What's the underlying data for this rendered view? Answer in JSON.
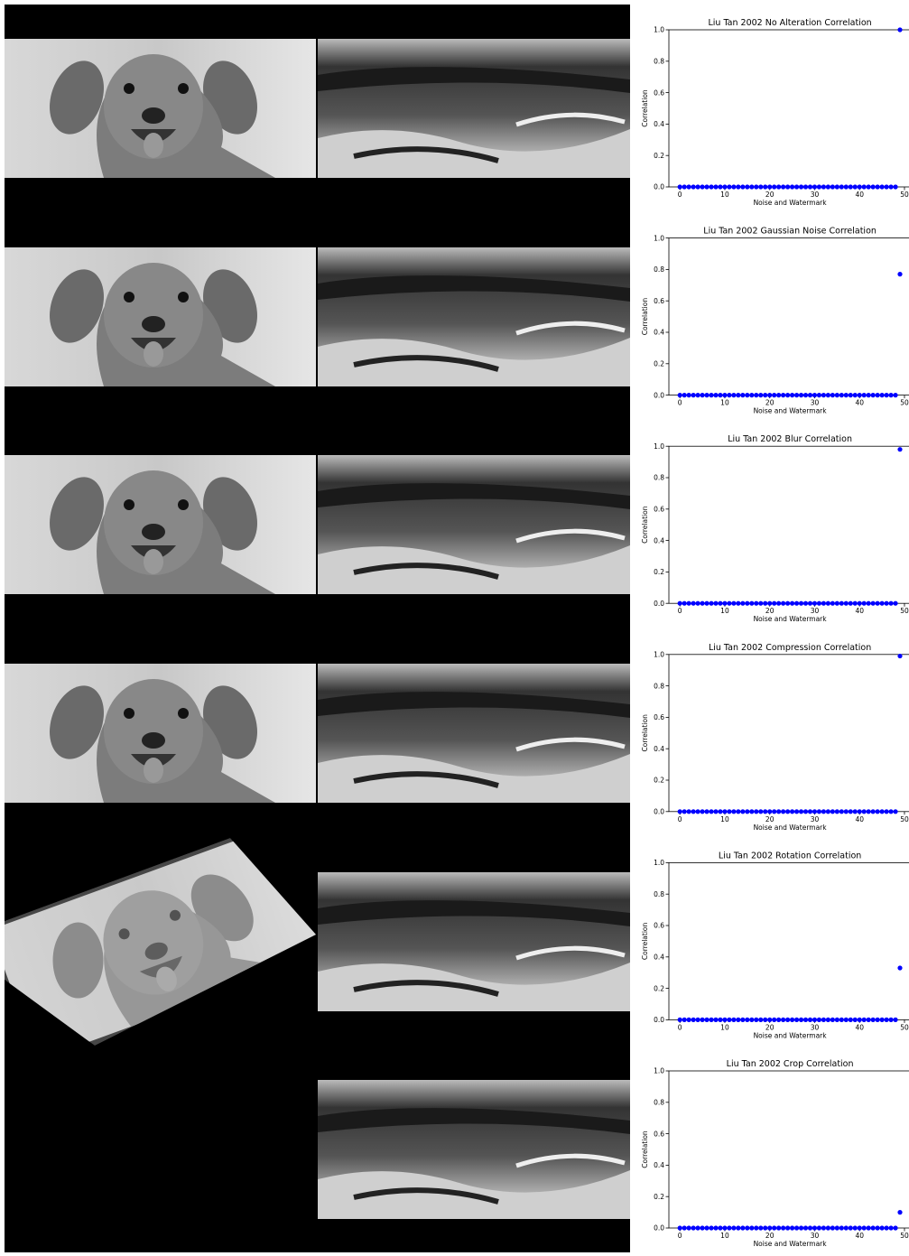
{
  "chart_data": [
    {
      "type": "scatter",
      "title": "Liu Tan 2002 No Alteration Correlation",
      "xlabel": "Noise and Watermark",
      "ylabel": "Correlation",
      "x": [
        0,
        1,
        2,
        3,
        4,
        5,
        6,
        7,
        8,
        9,
        10,
        11,
        12,
        13,
        14,
        15,
        16,
        17,
        18,
        19,
        20,
        21,
        22,
        23,
        24,
        25,
        26,
        27,
        28,
        29,
        30,
        31,
        32,
        33,
        34,
        35,
        36,
        37,
        38,
        39,
        40,
        41,
        42,
        43,
        44,
        45,
        46,
        47,
        48,
        49
      ],
      "values": [
        0,
        0,
        0,
        0,
        0,
        0,
        0,
        0,
        0,
        0,
        0,
        0,
        0,
        0,
        0,
        0,
        0,
        0,
        0,
        0,
        0,
        0,
        0,
        0,
        0,
        0,
        0,
        0,
        0,
        0,
        0,
        0,
        0,
        0,
        0,
        0,
        0,
        0,
        0,
        0,
        0,
        0,
        0,
        0,
        0,
        0,
        0,
        0,
        0,
        1.0
      ],
      "color": "#0000ff",
      "xlim": [
        -2.45,
        51.45
      ],
      "ylim": [
        0,
        1
      ],
      "xticks": [
        0,
        10,
        20,
        30,
        40,
        50
      ],
      "yticks": [
        {
          "value": 0,
          "label": "0.0"
        },
        {
          "value": 0.2,
          "label": "0.2"
        },
        {
          "value": 0.4,
          "label": "0.4"
        },
        {
          "value": 0.6,
          "label": "0.6"
        },
        {
          "value": 0.8,
          "label": "0.8"
        },
        {
          "value": 1,
          "label": "1.0"
        }
      ]
    },
    {
      "type": "scatter",
      "title": "Liu Tan 2002 Gaussian Noise Correlation",
      "xlabel": "Noise and Watermark",
      "ylabel": "Correlation",
      "x": [
        0,
        1,
        2,
        3,
        4,
        5,
        6,
        7,
        8,
        9,
        10,
        11,
        12,
        13,
        14,
        15,
        16,
        17,
        18,
        19,
        20,
        21,
        22,
        23,
        24,
        25,
        26,
        27,
        28,
        29,
        30,
        31,
        32,
        33,
        34,
        35,
        36,
        37,
        38,
        39,
        40,
        41,
        42,
        43,
        44,
        45,
        46,
        47,
        48,
        49
      ],
      "values": [
        0,
        0,
        0,
        0,
        0,
        0,
        0,
        0,
        0,
        0,
        0,
        0,
        0,
        0,
        0,
        0,
        0,
        0,
        0,
        0,
        0,
        0,
        0,
        0,
        0,
        0,
        0,
        0,
        0,
        0,
        0,
        0,
        0,
        0,
        0,
        0,
        0,
        0,
        0,
        0,
        0,
        0,
        0,
        0,
        0,
        0,
        0,
        0,
        0,
        0.77
      ],
      "color": "#0000ff",
      "xlim": [
        -2.45,
        51.45
      ],
      "ylim": [
        0,
        1
      ],
      "xticks": [
        0,
        10,
        20,
        30,
        40,
        50
      ],
      "yticks": [
        {
          "value": 0,
          "label": "0.0"
        },
        {
          "value": 0.2,
          "label": "0.2"
        },
        {
          "value": 0.4,
          "label": "0.4"
        },
        {
          "value": 0.6,
          "label": "0.6"
        },
        {
          "value": 0.8,
          "label": "0.8"
        },
        {
          "value": 1,
          "label": "1.0"
        }
      ]
    },
    {
      "type": "scatter",
      "title": "Liu Tan 2002 Blur Correlation",
      "xlabel": "Noise and Watermark",
      "ylabel": "Correlation",
      "x": [
        0,
        1,
        2,
        3,
        4,
        5,
        6,
        7,
        8,
        9,
        10,
        11,
        12,
        13,
        14,
        15,
        16,
        17,
        18,
        19,
        20,
        21,
        22,
        23,
        24,
        25,
        26,
        27,
        28,
        29,
        30,
        31,
        32,
        33,
        34,
        35,
        36,
        37,
        38,
        39,
        40,
        41,
        42,
        43,
        44,
        45,
        46,
        47,
        48,
        49
      ],
      "values": [
        0,
        0,
        0,
        0,
        0,
        0,
        0,
        0,
        0,
        0,
        0,
        0,
        0,
        0,
        0,
        0,
        0,
        0,
        0,
        0,
        0,
        0,
        0,
        0,
        0,
        0,
        0,
        0,
        0,
        0,
        0,
        0,
        0,
        0,
        0,
        0,
        0,
        0,
        0,
        0,
        0,
        0,
        0,
        0,
        0,
        0,
        0,
        0,
        0,
        0.98
      ],
      "color": "#0000ff",
      "xlim": [
        -2.45,
        51.45
      ],
      "ylim": [
        0,
        1
      ],
      "xticks": [
        0,
        10,
        20,
        30,
        40,
        50
      ],
      "yticks": [
        {
          "value": 0,
          "label": "0.0"
        },
        {
          "value": 0.2,
          "label": "0.2"
        },
        {
          "value": 0.4,
          "label": "0.4"
        },
        {
          "value": 0.6,
          "label": "0.6"
        },
        {
          "value": 0.8,
          "label": "0.8"
        },
        {
          "value": 1,
          "label": "1.0"
        }
      ]
    },
    {
      "type": "scatter",
      "title": "Liu Tan 2002 Compression Correlation",
      "xlabel": "Noise and Watermark",
      "ylabel": "Correlation",
      "x": [
        0,
        1,
        2,
        3,
        4,
        5,
        6,
        7,
        8,
        9,
        10,
        11,
        12,
        13,
        14,
        15,
        16,
        17,
        18,
        19,
        20,
        21,
        22,
        23,
        24,
        25,
        26,
        27,
        28,
        29,
        30,
        31,
        32,
        33,
        34,
        35,
        36,
        37,
        38,
        39,
        40,
        41,
        42,
        43,
        44,
        45,
        46,
        47,
        48,
        49
      ],
      "values": [
        0,
        0,
        0,
        0,
        0,
        0,
        0,
        0,
        0,
        0,
        0,
        0,
        0,
        0,
        0,
        0,
        0,
        0,
        0,
        0,
        0,
        0,
        0,
        0,
        0,
        0,
        0,
        0,
        0,
        0,
        0,
        0,
        0,
        0,
        0,
        0,
        0,
        0,
        0,
        0,
        0,
        0,
        0,
        0,
        0,
        0,
        0,
        0,
        0,
        0.99
      ],
      "color": "#0000ff",
      "xlim": [
        -2.45,
        51.45
      ],
      "ylim": [
        0,
        1
      ],
      "xticks": [
        0,
        10,
        20,
        30,
        40,
        50
      ],
      "yticks": [
        {
          "value": 0,
          "label": "0.0"
        },
        {
          "value": 0.2,
          "label": "0.2"
        },
        {
          "value": 0.4,
          "label": "0.4"
        },
        {
          "value": 0.6,
          "label": "0.6"
        },
        {
          "value": 0.8,
          "label": "0.8"
        },
        {
          "value": 1,
          "label": "1.0"
        }
      ]
    },
    {
      "type": "scatter",
      "title": "Liu Tan 2002 Rotation Correlation",
      "xlabel": "Noise and Watermark",
      "ylabel": "Correlation",
      "x": [
        0,
        1,
        2,
        3,
        4,
        5,
        6,
        7,
        8,
        9,
        10,
        11,
        12,
        13,
        14,
        15,
        16,
        17,
        18,
        19,
        20,
        21,
        22,
        23,
        24,
        25,
        26,
        27,
        28,
        29,
        30,
        31,
        32,
        33,
        34,
        35,
        36,
        37,
        38,
        39,
        40,
        41,
        42,
        43,
        44,
        45,
        46,
        47,
        48,
        49
      ],
      "values": [
        0,
        0,
        0,
        0,
        0,
        0,
        0,
        0,
        0,
        0,
        0,
        0,
        0,
        0,
        0,
        0,
        0,
        0,
        0,
        0,
        0,
        0,
        0,
        0,
        0,
        0,
        0,
        0,
        0,
        0,
        0,
        0,
        0,
        0,
        0,
        0,
        0,
        0,
        0,
        0,
        0,
        0,
        0,
        0,
        0,
        0,
        0,
        0,
        0,
        0.33
      ],
      "color": "#0000ff",
      "xlim": [
        -2.45,
        51.45
      ],
      "ylim": [
        0,
        1
      ],
      "xticks": [
        0,
        10,
        20,
        30,
        40,
        50
      ],
      "yticks": [
        {
          "value": 0,
          "label": "0.0"
        },
        {
          "value": 0.2,
          "label": "0.2"
        },
        {
          "value": 0.4,
          "label": "0.4"
        },
        {
          "value": 0.6,
          "label": "0.6"
        },
        {
          "value": 0.8,
          "label": "0.8"
        },
        {
          "value": 1,
          "label": "1.0"
        }
      ]
    },
    {
      "type": "scatter",
      "title": "Liu Tan 2002 Crop Correlation",
      "xlabel": "Noise and Watermark",
      "ylabel": "Correlation",
      "x": [
        0,
        1,
        2,
        3,
        4,
        5,
        6,
        7,
        8,
        9,
        10,
        11,
        12,
        13,
        14,
        15,
        16,
        17,
        18,
        19,
        20,
        21,
        22,
        23,
        24,
        25,
        26,
        27,
        28,
        29,
        30,
        31,
        32,
        33,
        34,
        35,
        36,
        37,
        38,
        39,
        40,
        41,
        42,
        43,
        44,
        45,
        46,
        47,
        48,
        49
      ],
      "values": [
        0,
        0,
        0,
        0,
        0,
        0,
        0,
        0,
        0,
        0,
        0,
        0,
        0,
        0,
        0,
        0,
        0,
        0,
        0,
        0,
        0,
        0,
        0,
        0,
        0,
        0,
        0,
        0,
        0,
        0,
        0,
        0,
        0,
        0,
        0,
        0,
        0,
        0,
        0,
        0,
        0,
        0,
        0,
        0,
        0,
        0,
        0,
        0,
        0,
        0.1
      ],
      "color": "#0000ff",
      "xlim": [
        -2.45,
        51.45
      ],
      "ylim": [
        0,
        1
      ],
      "xticks": [
        0,
        10,
        20,
        30,
        40,
        50
      ],
      "yticks": [
        {
          "value": 0,
          "label": "0.0"
        },
        {
          "value": 0.2,
          "label": "0.2"
        },
        {
          "value": 0.4,
          "label": "0.4"
        },
        {
          "value": 0.6,
          "label": "0.6"
        },
        {
          "value": 0.8,
          "label": "0.8"
        },
        {
          "value": 1,
          "label": "1.0"
        }
      ]
    }
  ]
}
